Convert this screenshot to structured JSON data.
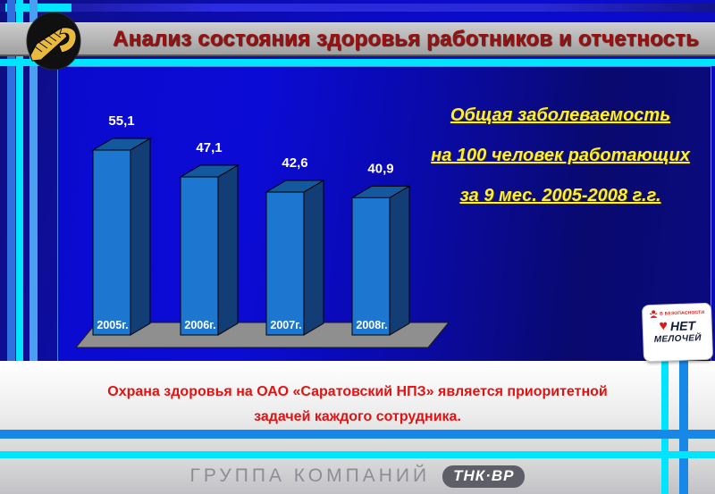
{
  "title_bar": {
    "title": "Анализ состояния здоровья работников и отчетность"
  },
  "caption": {
    "line1": "Общая заболеваемость",
    "line2": "на 100 человек работающих",
    "line3": "за 9 мес. 2005-2008 г.г."
  },
  "note_box": {
    "line1": "Охрана здоровья на ОАО «Саратовский НПЗ» является приоритетной",
    "line2": "задачей каждого сотрудника."
  },
  "footer": {
    "group_label": "ГРУППА КОМПАНИЙ",
    "brand": "ТНК·ВР"
  },
  "safety_badge": {
    "tagline": "В БЕЗОПАСНОСТИ",
    "word1": "НЕТ",
    "word2": "МЕЛОЧЕЙ"
  },
  "colors": {
    "accent_cyan": "#00e4ff",
    "accent_blue": "#1888e8",
    "bar_front": "#1d76cf",
    "bar_top": "#14599e",
    "bar_side": "#123e75",
    "floor_gray": "#8f8f8f",
    "title_red": "#9b1111",
    "caption_yellow": "#ffef2f",
    "note_red": "#e31212"
  },
  "chart_data": {
    "type": "bar",
    "categories": [
      "2005г.",
      "2006г.",
      "2007г.",
      "2008г."
    ],
    "values": [
      55.1,
      47.1,
      42.6,
      40.9
    ],
    "labels": [
      "55,1",
      "47,1",
      "42,6",
      "40,9"
    ],
    "title": "Общая заболеваемость на 100 человек работающих за 9 мес. 2005-2008 г.г.",
    "xlabel": "",
    "ylabel": "",
    "ylim": [
      0,
      60
    ],
    "style": "3d-column",
    "grid": false,
    "legend": false
  }
}
